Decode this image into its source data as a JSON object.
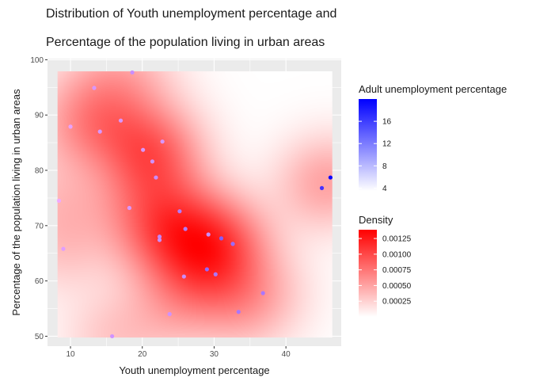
{
  "chart_data": {
    "type": "heatmap",
    "title_line1": "Distribution of Youth unemployment percentage and",
    "title_line2": "Percentage of the population living in urban areas",
    "xlabel": "Youth unemployment percentage",
    "ylabel": "Percentage of the population living in urban areas",
    "xlim": [
      6.8,
      47.7
    ],
    "ylim": [
      48.2,
      100.2
    ],
    "x_ticks": [
      10,
      20,
      30,
      40
    ],
    "y_ticks": [
      50,
      60,
      70,
      80,
      90,
      100
    ],
    "grid": true,
    "density_extent": {
      "x": [
        8.2,
        46.4
      ],
      "y": [
        49.8,
        97.9
      ]
    },
    "density_legend": {
      "title": "Density",
      "breaks": [
        0.00025,
        0.0005,
        0.00075,
        0.001,
        0.00125
      ],
      "labels": [
        "0.00025",
        "0.00050",
        "0.00075",
        "0.00100",
        "0.00125"
      ],
      "range": [
        0.0,
        0.00139
      ],
      "low_color": "#ffffff",
      "high_color": "#ff0000"
    },
    "color_legend": {
      "title": "Adult unemployment percentage",
      "breaks": [
        4,
        8,
        12,
        16
      ],
      "labels": [
        "4",
        "8",
        "12",
        "16"
      ],
      "range": [
        3.5,
        20
      ],
      "low_color": "#ffffff",
      "high_color": "#0000ff"
    },
    "points": [
      {
        "x": 8.4,
        "y": 74.5,
        "adult": 4.5
      },
      {
        "x": 9.0,
        "y": 65.8,
        "adult": 5.5
      },
      {
        "x": 10.0,
        "y": 87.9,
        "adult": 5.0
      },
      {
        "x": 13.3,
        "y": 94.9,
        "adult": 6.0
      },
      {
        "x": 14.1,
        "y": 87.0,
        "adult": 6.0
      },
      {
        "x": 15.8,
        "y": 50.0,
        "adult": 6.5
      },
      {
        "x": 17.0,
        "y": 89.0,
        "adult": 6.0
      },
      {
        "x": 18.2,
        "y": 73.2,
        "adult": 6.0
      },
      {
        "x": 18.6,
        "y": 97.7,
        "adult": 7.0
      },
      {
        "x": 20.1,
        "y": 83.7,
        "adult": 6.0
      },
      {
        "x": 21.4,
        "y": 81.6,
        "adult": 6.5
      },
      {
        "x": 21.9,
        "y": 78.7,
        "adult": 7.0
      },
      {
        "x": 22.4,
        "y": 68.0,
        "adult": 7.5
      },
      {
        "x": 22.4,
        "y": 67.4,
        "adult": 7.0
      },
      {
        "x": 22.8,
        "y": 85.2,
        "adult": 6.0
      },
      {
        "x": 23.8,
        "y": 54.0,
        "adult": 6.5
      },
      {
        "x": 25.2,
        "y": 72.6,
        "adult": 8.5
      },
      {
        "x": 25.8,
        "y": 60.8,
        "adult": 7.0
      },
      {
        "x": 26.0,
        "y": 69.4,
        "adult": 8.5
      },
      {
        "x": 29.0,
        "y": 62.1,
        "adult": 10.5
      },
      {
        "x": 29.2,
        "y": 68.4,
        "adult": 7.0
      },
      {
        "x": 30.2,
        "y": 61.2,
        "adult": 9.0
      },
      {
        "x": 31.0,
        "y": 67.7,
        "adult": 11.5
      },
      {
        "x": 32.6,
        "y": 66.7,
        "adult": 10.0
      },
      {
        "x": 33.4,
        "y": 54.4,
        "adult": 9.0
      },
      {
        "x": 36.8,
        "y": 57.8,
        "adult": 9.0
      },
      {
        "x": 45.0,
        "y": 76.8,
        "adult": 15.5
      },
      {
        "x": 46.2,
        "y": 78.7,
        "adult": 19.5
      }
    ]
  }
}
